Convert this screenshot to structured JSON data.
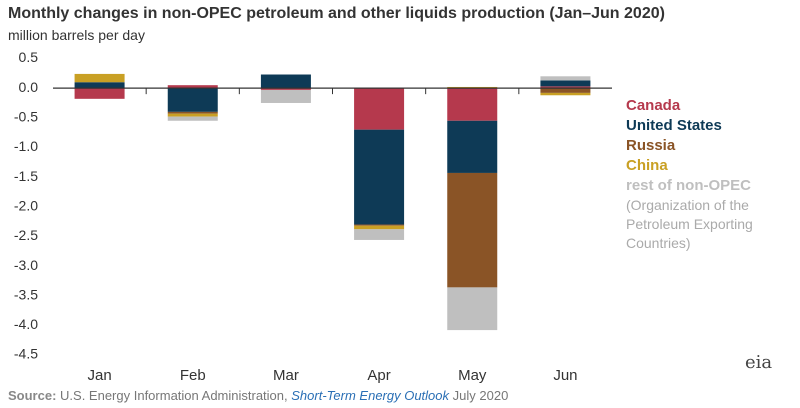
{
  "chart_data": {
    "type": "stacked_bar",
    "title": "Monthly changes in non-OPEC petroleum and other liquids production (Jan–Jun 2020)",
    "subtitle": "million barrels per day",
    "categories": [
      "Jan",
      "Feb",
      "Mar",
      "Apr",
      "May",
      "Jun"
    ],
    "series": [
      {
        "name": "Canada",
        "color": "#b5394d",
        "values": [
          -0.18,
          0.05,
          -0.03,
          -0.7,
          -0.55,
          0.03
        ]
      },
      {
        "name": "United States",
        "color": "#0e3a56",
        "values": [
          0.1,
          -0.4,
          0.23,
          -1.6,
          -0.88,
          0.1
        ]
      },
      {
        "name": "Russia",
        "color": "#8a5426",
        "values": [
          0,
          -0.03,
          0,
          -0.02,
          -1.93,
          -0.08
        ]
      },
      {
        "name": "China",
        "color": "#c9a024",
        "values": [
          0.14,
          -0.05,
          0,
          -0.06,
          0.02,
          -0.04
        ]
      },
      {
        "name": "rest of non-OPEC",
        "color": "#bfbfbf",
        "values": [
          0,
          -0.07,
          -0.22,
          -0.18,
          -0.72,
          0.07
        ]
      }
    ],
    "legend_note": "(Organization of the Petroleum Exporting Countries)",
    "ylim": [
      -4.5,
      0.5
    ],
    "yticks": [
      0.5,
      {
        "value": 0,
        "label": "0.0"
      },
      -0.5,
      {
        "value": -1,
        "label": "-1.0"
      },
      -1.5,
      {
        "value": -2,
        "label": "-2.0"
      },
      -2.5,
      {
        "value": -3,
        "label": "-3.0"
      },
      -3.5,
      {
        "value": -4,
        "label": "-4.0"
      },
      -4.5
    ],
    "source_label": "Source:",
    "source_text": "U.S. Energy Information Administration,",
    "source_link": "Short-Term Energy Outlook",
    "source_date": "July 2020",
    "logo": "eia"
  }
}
